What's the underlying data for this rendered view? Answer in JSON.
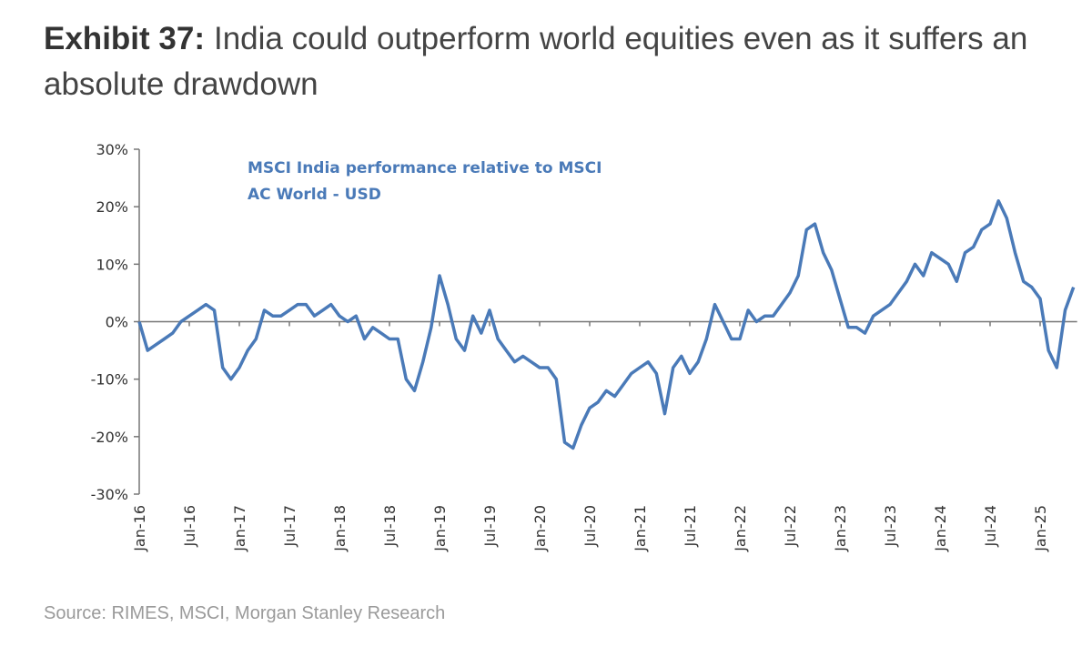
{
  "title": {
    "prefix": "Exhibit 37:",
    "text": "India could outperform world equities even as it suffers an absolute drawdown"
  },
  "source": "Source: RIMES, MSCI, Morgan Stanley Research",
  "chart_data": {
    "type": "line",
    "title": "",
    "xlabel": "",
    "ylabel": "",
    "annotation": [
      "MSCI India  performance relative to MSCI",
      "AC World - USD"
    ],
    "line_color": "#4a7ab8",
    "ylim": [
      -30,
      30
    ],
    "yticks": [
      "30%",
      "20%",
      "10%",
      "0%",
      "-10%",
      "-20%",
      "-30%"
    ],
    "ytick_values": [
      30,
      20,
      10,
      0,
      -10,
      -20,
      -30
    ],
    "xticks": [
      "Jan-16",
      "Jul-16",
      "Jan-17",
      "Jul-17",
      "Jan-18",
      "Jul-18",
      "Jan-19",
      "Jul-19",
      "Jan-20",
      "Jul-20",
      "Jan-21",
      "Jul-21",
      "Jan-22",
      "Jul-22",
      "Jan-23",
      "Jul-23",
      "Jan-24",
      "Jul-24",
      "Jan-25"
    ],
    "x_start": "Jan-16",
    "x_frequency": "monthly",
    "series": [
      {
        "values": [
          0,
          -5,
          -4,
          -3,
          -2,
          0,
          1,
          2,
          3,
          2,
          -8,
          -10,
          -8,
          -5,
          -3,
          2,
          1,
          1,
          2,
          3,
          3,
          1,
          2,
          3,
          1,
          0,
          1,
          -3,
          -1,
          -2,
          -3,
          -3,
          -10,
          -12,
          -7,
          -1,
          8,
          3,
          -3,
          -5,
          1,
          -2,
          2,
          -3,
          -5,
          -7,
          -6,
          -7,
          -8,
          -8,
          -10,
          -21,
          -22,
          -18,
          -15,
          -14,
          -12,
          -13,
          -11,
          -9,
          -8,
          -7,
          -9,
          -16,
          -8,
          -6,
          -9,
          -7,
          -3,
          3,
          0,
          -3,
          -3,
          2,
          0,
          1,
          1,
          3,
          5,
          8,
          16,
          17,
          12,
          9,
          4,
          -1,
          -1,
          -2,
          1,
          2,
          3,
          5,
          7,
          10,
          8,
          12,
          11,
          10,
          7,
          12,
          13,
          16,
          17,
          21,
          18,
          12,
          7,
          6,
          4,
          -5,
          -8,
          2,
          6
        ]
      }
    ],
    "reference_line": 0,
    "grid": false
  }
}
